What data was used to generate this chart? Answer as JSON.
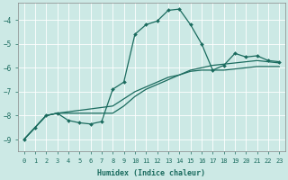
{
  "xlabel": "Humidex (Indice chaleur)",
  "background_color": "#cce9e5",
  "grid_color": "#b0d8d4",
  "line_color": "#1a6b5e",
  "xlim": [
    -0.5,
    23.5
  ],
  "ylim": [
    -9.5,
    -3.3
  ],
  "yticks": [
    -9,
    -8,
    -7,
    -6,
    -5,
    -4
  ],
  "xticks": [
    0,
    1,
    2,
    3,
    4,
    5,
    6,
    7,
    8,
    9,
    10,
    11,
    12,
    13,
    14,
    15,
    16,
    17,
    18,
    19,
    20,
    21,
    22,
    23
  ],
  "series": [
    {
      "x": [
        0,
        1,
        2,
        3,
        4,
        5,
        6,
        7,
        8,
        9,
        10,
        11,
        12,
        13,
        14,
        15,
        16,
        17,
        18,
        19,
        20,
        21,
        22,
        23
      ],
      "y": [
        -9.0,
        -8.5,
        -8.0,
        -7.9,
        -8.2,
        -8.3,
        -8.35,
        -8.25,
        -6.9,
        -6.6,
        -4.6,
        -4.2,
        -4.05,
        -3.6,
        -3.55,
        -4.2,
        -5.0,
        -6.1,
        -5.9,
        -5.4,
        -5.55,
        -5.5,
        -5.7,
        -5.75
      ],
      "marker": true,
      "lw": 0.9
    },
    {
      "x": [
        0,
        2,
        3,
        8,
        9,
        10,
        11,
        12,
        13,
        14,
        15,
        16,
        17,
        18,
        19,
        20,
        21,
        22,
        23
      ],
      "y": [
        -9.0,
        -8.0,
        -7.9,
        -7.6,
        -7.3,
        -7.0,
        -6.8,
        -6.6,
        -6.4,
        -6.3,
        -6.1,
        -6.0,
        -5.9,
        -5.85,
        -5.8,
        -5.75,
        -5.7,
        -5.75,
        -5.8
      ],
      "marker": false,
      "lw": 0.9
    },
    {
      "x": [
        0,
        2,
        3,
        8,
        9,
        10,
        11,
        12,
        13,
        14,
        15,
        16,
        17,
        18,
        19,
        20,
        21,
        22,
        23
      ],
      "y": [
        -9.0,
        -8.0,
        -7.9,
        -7.9,
        -7.6,
        -7.2,
        -6.9,
        -6.7,
        -6.5,
        -6.3,
        -6.15,
        -6.1,
        -6.1,
        -6.1,
        -6.05,
        -6.0,
        -5.95,
        -5.95,
        -5.95
      ],
      "marker": false,
      "lw": 0.9
    }
  ]
}
